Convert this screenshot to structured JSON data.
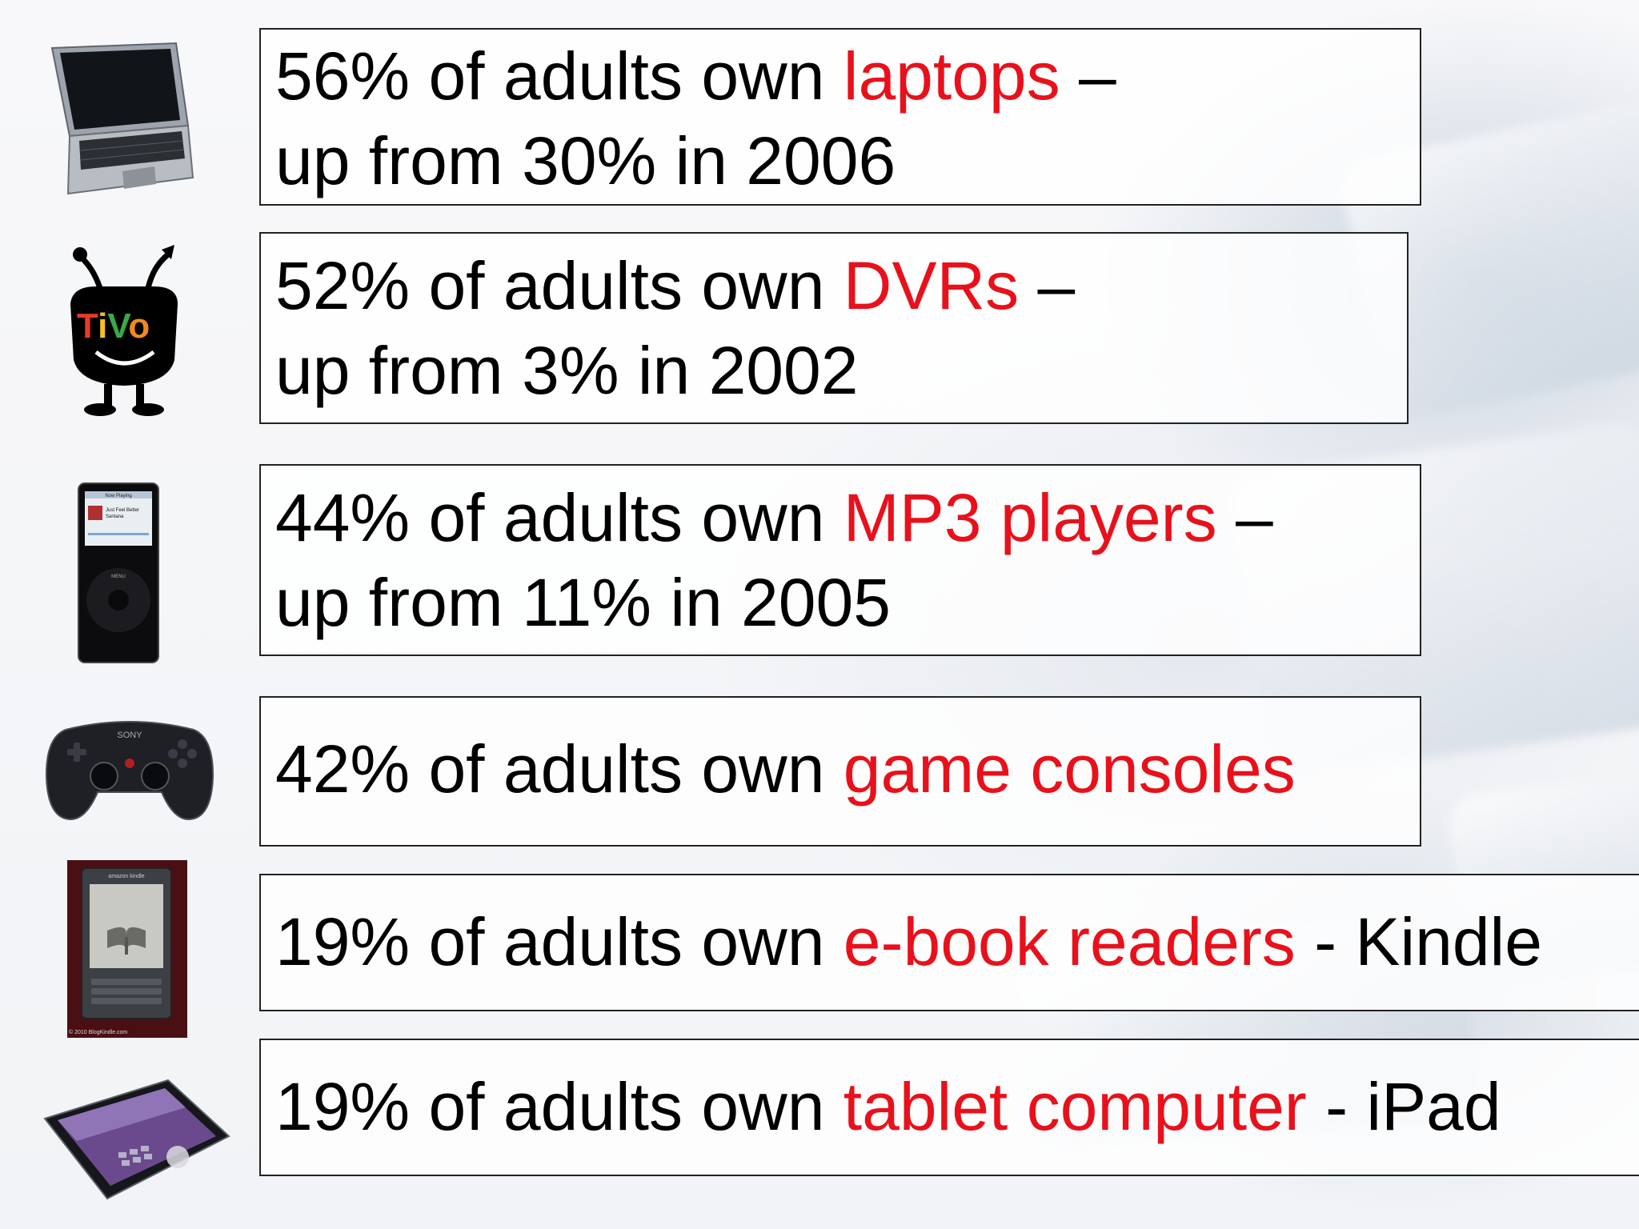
{
  "rows": [
    {
      "icon": "laptop-icon",
      "line1": {
        "pre": "56% of adults own ",
        "highlight": "laptops",
        "post": " –"
      },
      "line2": "up from 30% in 2006"
    },
    {
      "icon": "tivo-icon",
      "line1": {
        "pre": "52% of adults own ",
        "highlight": "DVRs",
        "post": " –"
      },
      "line2": "up from 3% in 2002"
    },
    {
      "icon": "mp3-player-icon",
      "line1": {
        "pre": "44% of adults own ",
        "highlight": "MP3 players",
        "post": " –"
      },
      "line2": "up from 11% in 2005"
    },
    {
      "icon": "game-controller-icon",
      "line1": {
        "pre": "42% of adults own ",
        "highlight": "game consoles",
        "post": ""
      }
    },
    {
      "icon": "ebook-reader-icon",
      "line1": {
        "pre": "19% of adults own ",
        "highlight": "e-book readers",
        "post": " - Kindle"
      }
    },
    {
      "icon": "tablet-icon",
      "line1": {
        "pre": "19% of adults own ",
        "highlight": "tablet computer",
        "post": " - iPad"
      }
    }
  ],
  "icon_text": {
    "tivo_logo": "TiVo",
    "ipod_header": "Now Playing",
    "ipod_track": "Just Feel Better",
    "ipod_artist": "Santana",
    "ipod_menu": "MENU",
    "controller_brand": "SONY",
    "kindle_brand": "amazon kindle",
    "kindle_copyright": "© 2010 BlogKindle.com"
  },
  "colors": {
    "highlight": "#e8111b",
    "text": "#000000",
    "border": "#222222"
  }
}
